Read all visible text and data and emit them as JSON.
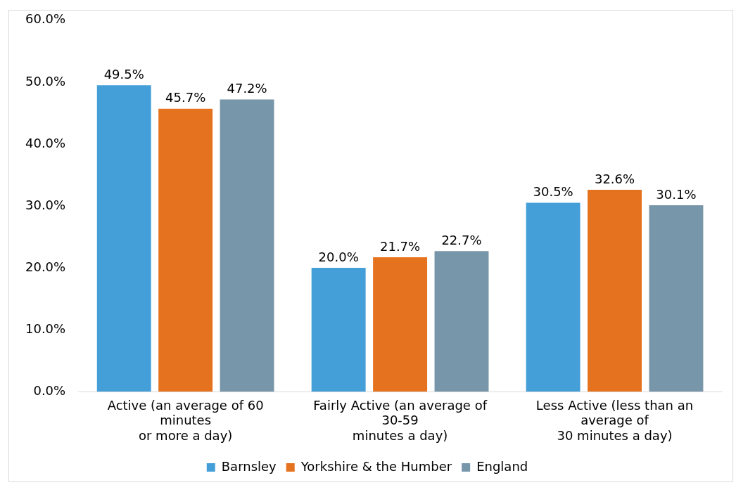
{
  "chart_data": {
    "type": "bar",
    "categories": [
      "Active (an average of 60\nminutes\nor more a day)",
      "Fairly Active (an average of\n30-59\nminutes a day)",
      "Less Active (less than an\naverage of\n30 minutes a day)"
    ],
    "series": [
      {
        "name": "Barnsley",
        "color": "#449fd8",
        "values": [
          49.5,
          20.0,
          30.5
        ],
        "value_labels": [
          "49.5%",
          "20.0%",
          "30.5%"
        ]
      },
      {
        "name": "Yorkshire & the Humber",
        "color": "#e5721e",
        "values": [
          45.7,
          21.7,
          32.6
        ],
        "value_labels": [
          "45.7%",
          "21.7%",
          "32.6%"
        ]
      },
      {
        "name": "England",
        "color": "#7896aa",
        "values": [
          47.2,
          22.7,
          30.1
        ],
        "value_labels": [
          "47.2%",
          "22.7%",
          "30.1%"
        ]
      }
    ],
    "ylim": [
      0,
      60
    ],
    "yticks": [
      {
        "value": 0,
        "label": "0.0%"
      },
      {
        "value": 10,
        "label": "10.0%"
      },
      {
        "value": 20,
        "label": "20.0%"
      },
      {
        "value": 30,
        "label": "30.0%"
      },
      {
        "value": 40,
        "label": "40.0%"
      },
      {
        "value": 50,
        "label": "50.0%"
      },
      {
        "value": 60,
        "label": "60.0%"
      }
    ],
    "grid": false,
    "legend": "bottom"
  }
}
